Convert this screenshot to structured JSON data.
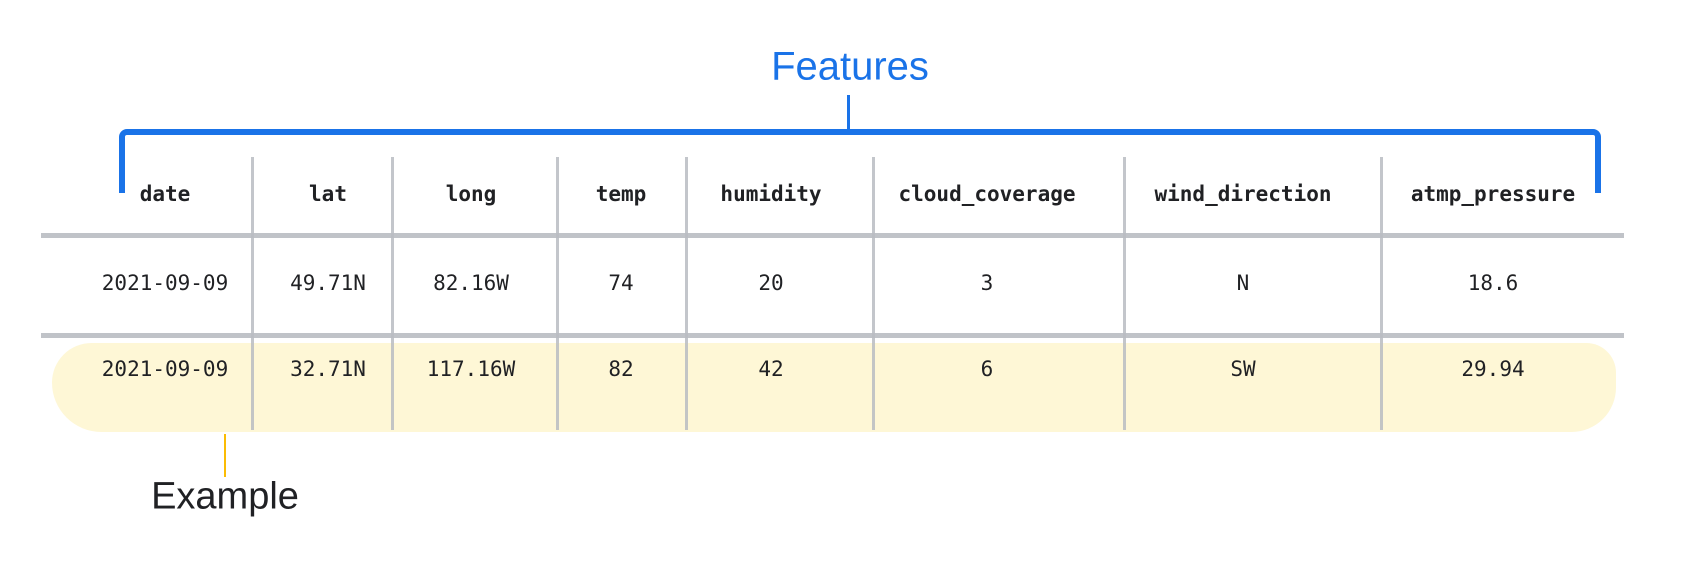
{
  "annotations": {
    "features_label": "Features",
    "example_label": "Example",
    "features_color": "#1a73e8",
    "example_color": "#fbbc04",
    "highlight_color": "#fef7d6"
  },
  "table": {
    "columns": [
      "date",
      "lat",
      "long",
      "temp",
      "humidity",
      "cloud_coverage",
      "wind_direction",
      "atmp_pressure"
    ],
    "rows": [
      [
        "2021-09-09",
        "49.71N",
        "82.16W",
        "74",
        "20",
        "3",
        "N",
        "18.6"
      ],
      [
        "2021-09-09",
        "32.71N",
        "117.16W",
        "82",
        "42",
        "6",
        "SW",
        "29.94"
      ]
    ],
    "highlighted_row": 1
  }
}
